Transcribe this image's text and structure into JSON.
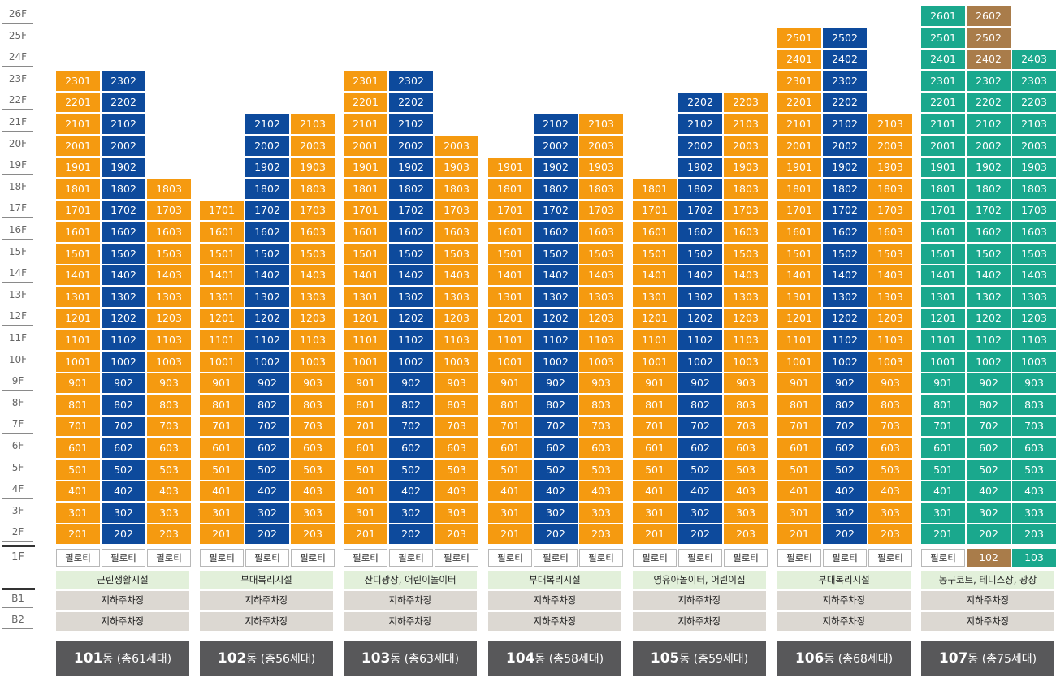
{
  "floor_labels": [
    "26F",
    "25F",
    "24F",
    "23F",
    "22F",
    "21F",
    "20F",
    "19F",
    "18F",
    "17F",
    "16F",
    "15F",
    "14F",
    "13F",
    "12F",
    "11F",
    "10F",
    "9F",
    "8F",
    "7F",
    "6F",
    "5F",
    "4F",
    "3F",
    "2F"
  ],
  "ground_floor_label": "1F",
  "basement_labels": [
    "B1",
    "B2"
  ],
  "colors": {
    "orange": "#f59a10",
    "blue": "#0d4a9c",
    "teal": "#1aa88d",
    "tan": "#a97c4a"
  },
  "buildings": [
    {
      "num": "101",
      "title_rest": "동 (총61세대)",
      "facility": "근린생활시설",
      "parking_b1": "지하주차장",
      "parking_b2": "지하주차장",
      "columns": [
        {
          "line": "01",
          "top": 23,
          "color": "orange"
        },
        {
          "line": "02",
          "top": 23,
          "color": "blue"
        },
        {
          "line": "03",
          "top": 18,
          "color": "orange"
        }
      ],
      "ground": [
        "필로티",
        "필로티",
        "필로티"
      ]
    },
    {
      "num": "102",
      "title_rest": "동 (총56세대)",
      "facility": "부대복리시설",
      "parking_b1": "지하주차장",
      "parking_b2": "지하주차장",
      "columns": [
        {
          "line": "01",
          "top": 17,
          "color": "orange"
        },
        {
          "line": "02",
          "top": 21,
          "color": "blue"
        },
        {
          "line": "03",
          "top": 21,
          "color": "orange"
        }
      ],
      "ground": [
        "필로티",
        "필로티",
        "필로티"
      ]
    },
    {
      "num": "103",
      "title_rest": "동 (총63세대)",
      "facility": "잔디광장, 어린이놀이터",
      "parking_b1": "지하주차장",
      "parking_b2": "지하주차장",
      "columns": [
        {
          "line": "01",
          "top": 23,
          "color": "orange"
        },
        {
          "line": "02",
          "top": 23,
          "color": "blue"
        },
        {
          "line": "03",
          "top": 20,
          "color": "orange"
        }
      ],
      "ground": [
        "필로티",
        "필로티",
        "필로티"
      ]
    },
    {
      "num": "104",
      "title_rest": "동 (총58세대)",
      "facility": "부대복리시설",
      "parking_b1": "지하주차장",
      "parking_b2": "지하주차장",
      "columns": [
        {
          "line": "01",
          "top": 19,
          "color": "orange"
        },
        {
          "line": "02",
          "top": 21,
          "color": "blue"
        },
        {
          "line": "03",
          "top": 21,
          "color": "orange"
        }
      ],
      "ground": [
        "필로티",
        "필로티",
        "필로티"
      ]
    },
    {
      "num": "105",
      "title_rest": "동 (총59세대)",
      "facility": "영유아놀이터, 어린이집",
      "parking_b1": "지하주차장",
      "parking_b2": "지하주차장",
      "columns": [
        {
          "line": "01",
          "top": 18,
          "color": "orange"
        },
        {
          "line": "02",
          "top": 22,
          "color": "blue"
        },
        {
          "line": "03",
          "top": 22,
          "color": "orange"
        }
      ],
      "ground": [
        "필로티",
        "필로티",
        "필로티"
      ]
    },
    {
      "num": "106",
      "title_rest": "동 (총68세대)",
      "facility": "부대복리시설",
      "parking_b1": "지하주차장",
      "parking_b2": "지하주차장",
      "columns": [
        {
          "line": "01",
          "top": 25,
          "color": "orange"
        },
        {
          "line": "02",
          "top": 25,
          "color": "blue"
        },
        {
          "line": "03",
          "top": 21,
          "color": "orange"
        }
      ],
      "ground": [
        "필로티",
        "필로티",
        "필로티"
      ]
    },
    {
      "num": "107",
      "title_rest": "동 (총75세대)",
      "facility": "농구코트, 테니스장, 광장",
      "parking_b1": "지하주차장",
      "parking_b2": "지하주차장",
      "columns": [
        {
          "line": "01",
          "top": 26,
          "color": "teal"
        },
        {
          "line": "02",
          "top": 26,
          "color": "teal",
          "tan_from": 24
        },
        {
          "line": "03",
          "top": 24,
          "color": "teal"
        }
      ],
      "ground": [
        "필로티",
        "102",
        "103"
      ]
    }
  ]
}
